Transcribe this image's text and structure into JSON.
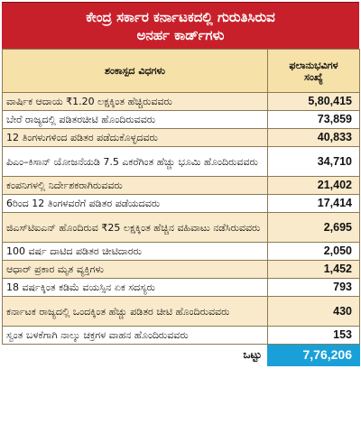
{
  "title": {
    "line1": "ಕೇಂದ್ರ ಸರ್ಕಾರ ಕರ್ನಾಟಕದಲ್ಲಿ ಗುರುತಿಸಿರುವ",
    "line2": "ಅನರ್ಹ ಕಾರ್ಡ್‌ಗಳು"
  },
  "table": {
    "headers": {
      "category": "ಶಂಕಾಸ್ಪದ ವಿಧಗಳು",
      "count_line1": "ಫಲಾನುಭವಿಗಳ",
      "count_line2": "ಸಂಖ್ಯೆ"
    },
    "rows": [
      {
        "category": "ವಾರ್ಷಿಕ ಆದಾಯ ₹1.20 ಲಕ್ಷಕ್ಕಿಂತ ಹೆಚ್ಚಿರುವವರು",
        "count": "5,80,415"
      },
      {
        "category": "ಬೇರೆ ರಾಜ್ಯದಲ್ಲಿ ಪಡಿತರಚೀಟಿ ಹೊಂದಿರುವವರು",
        "count": "73,859"
      },
      {
        "category": "12 ತಿಂಗಳುಗಳಿಂದ ಪಡಿತರ ಪಡೆದುಕೊಳ್ಳದವರು",
        "count": "40,833"
      },
      {
        "category": "ಪಿಎಂ–ಕಿಸಾನ್ ಯೋಜನೆಯಡಿ 7.5 ಎಕರೆಗಿಂತ ಹೆಚ್ಚು ಭೂಮಿ ಹೊಂದಿರುವವರು",
        "count": "34,710"
      },
      {
        "category": "ಕಂಪನಿಗಳಲ್ಲಿ ನಿರ್ದೇಶಕರಾಗಿರುವವರು",
        "count": "21,402"
      },
      {
        "category": "6ರಿಂದ 12 ತಿಂಗಳವರೆಗೆ ಪಡಿತರ ಪಡೆಯದವರು",
        "count": "17,414"
      },
      {
        "category": "ಜಿಎಸ್‌ಟಿಐಎನ್ ಹೊಂದಿರುವ ₹25 ಲಕ್ಷಕ್ಕಿಂತ ಹೆಚ್ಚಿನ ವಹಿವಾಟು ನಡೆಸಿರುವವರು",
        "count": "2,695"
      },
      {
        "category": "100 ವರ್ಷ ದಾಟಿದ ಪಡಿತರ ಚೀಟಿದಾರರು",
        "count": "2,050"
      },
      {
        "category": "ಆಧಾರ್ ಪ್ರಕಾರ ಮೃತ ವ್ಯಕ್ತಿಗಳು",
        "count": "1,452"
      },
      {
        "category": "18 ವರ್ಷಕ್ಕಿಂತ ಕಡಿಮೆ ವಯಸ್ಸಿನ ಏಕ ಸದಸ್ಯರು",
        "count": "793"
      },
      {
        "category": "ಕರ್ನಾಟಕ ರಾಜ್ಯದಲ್ಲಿ ಒಂದಕ್ಕಿಂತ ಹೆಚ್ಚು ಪಡಿತರ ಚೀಟಿ ಹೊಂದಿರುವವರು",
        "count": "430"
      },
      {
        "category": "ಸ್ವಂತ ಬಳಕೆಗಾಗಿ ನಾಲ್ಕು ಚಕ್ರಗಳ ವಾಹನ ಹೊಂದಿರುವವರು",
        "count": "153"
      }
    ],
    "total_label": "ಒಟ್ಟು",
    "total_value": "7,76,206"
  },
  "colors": {
    "title_bg": "#c8202a",
    "header_bg": "#f6e1a8",
    "stripe_bg": "#f9eacb",
    "total_bg": "#1aa0d8"
  }
}
